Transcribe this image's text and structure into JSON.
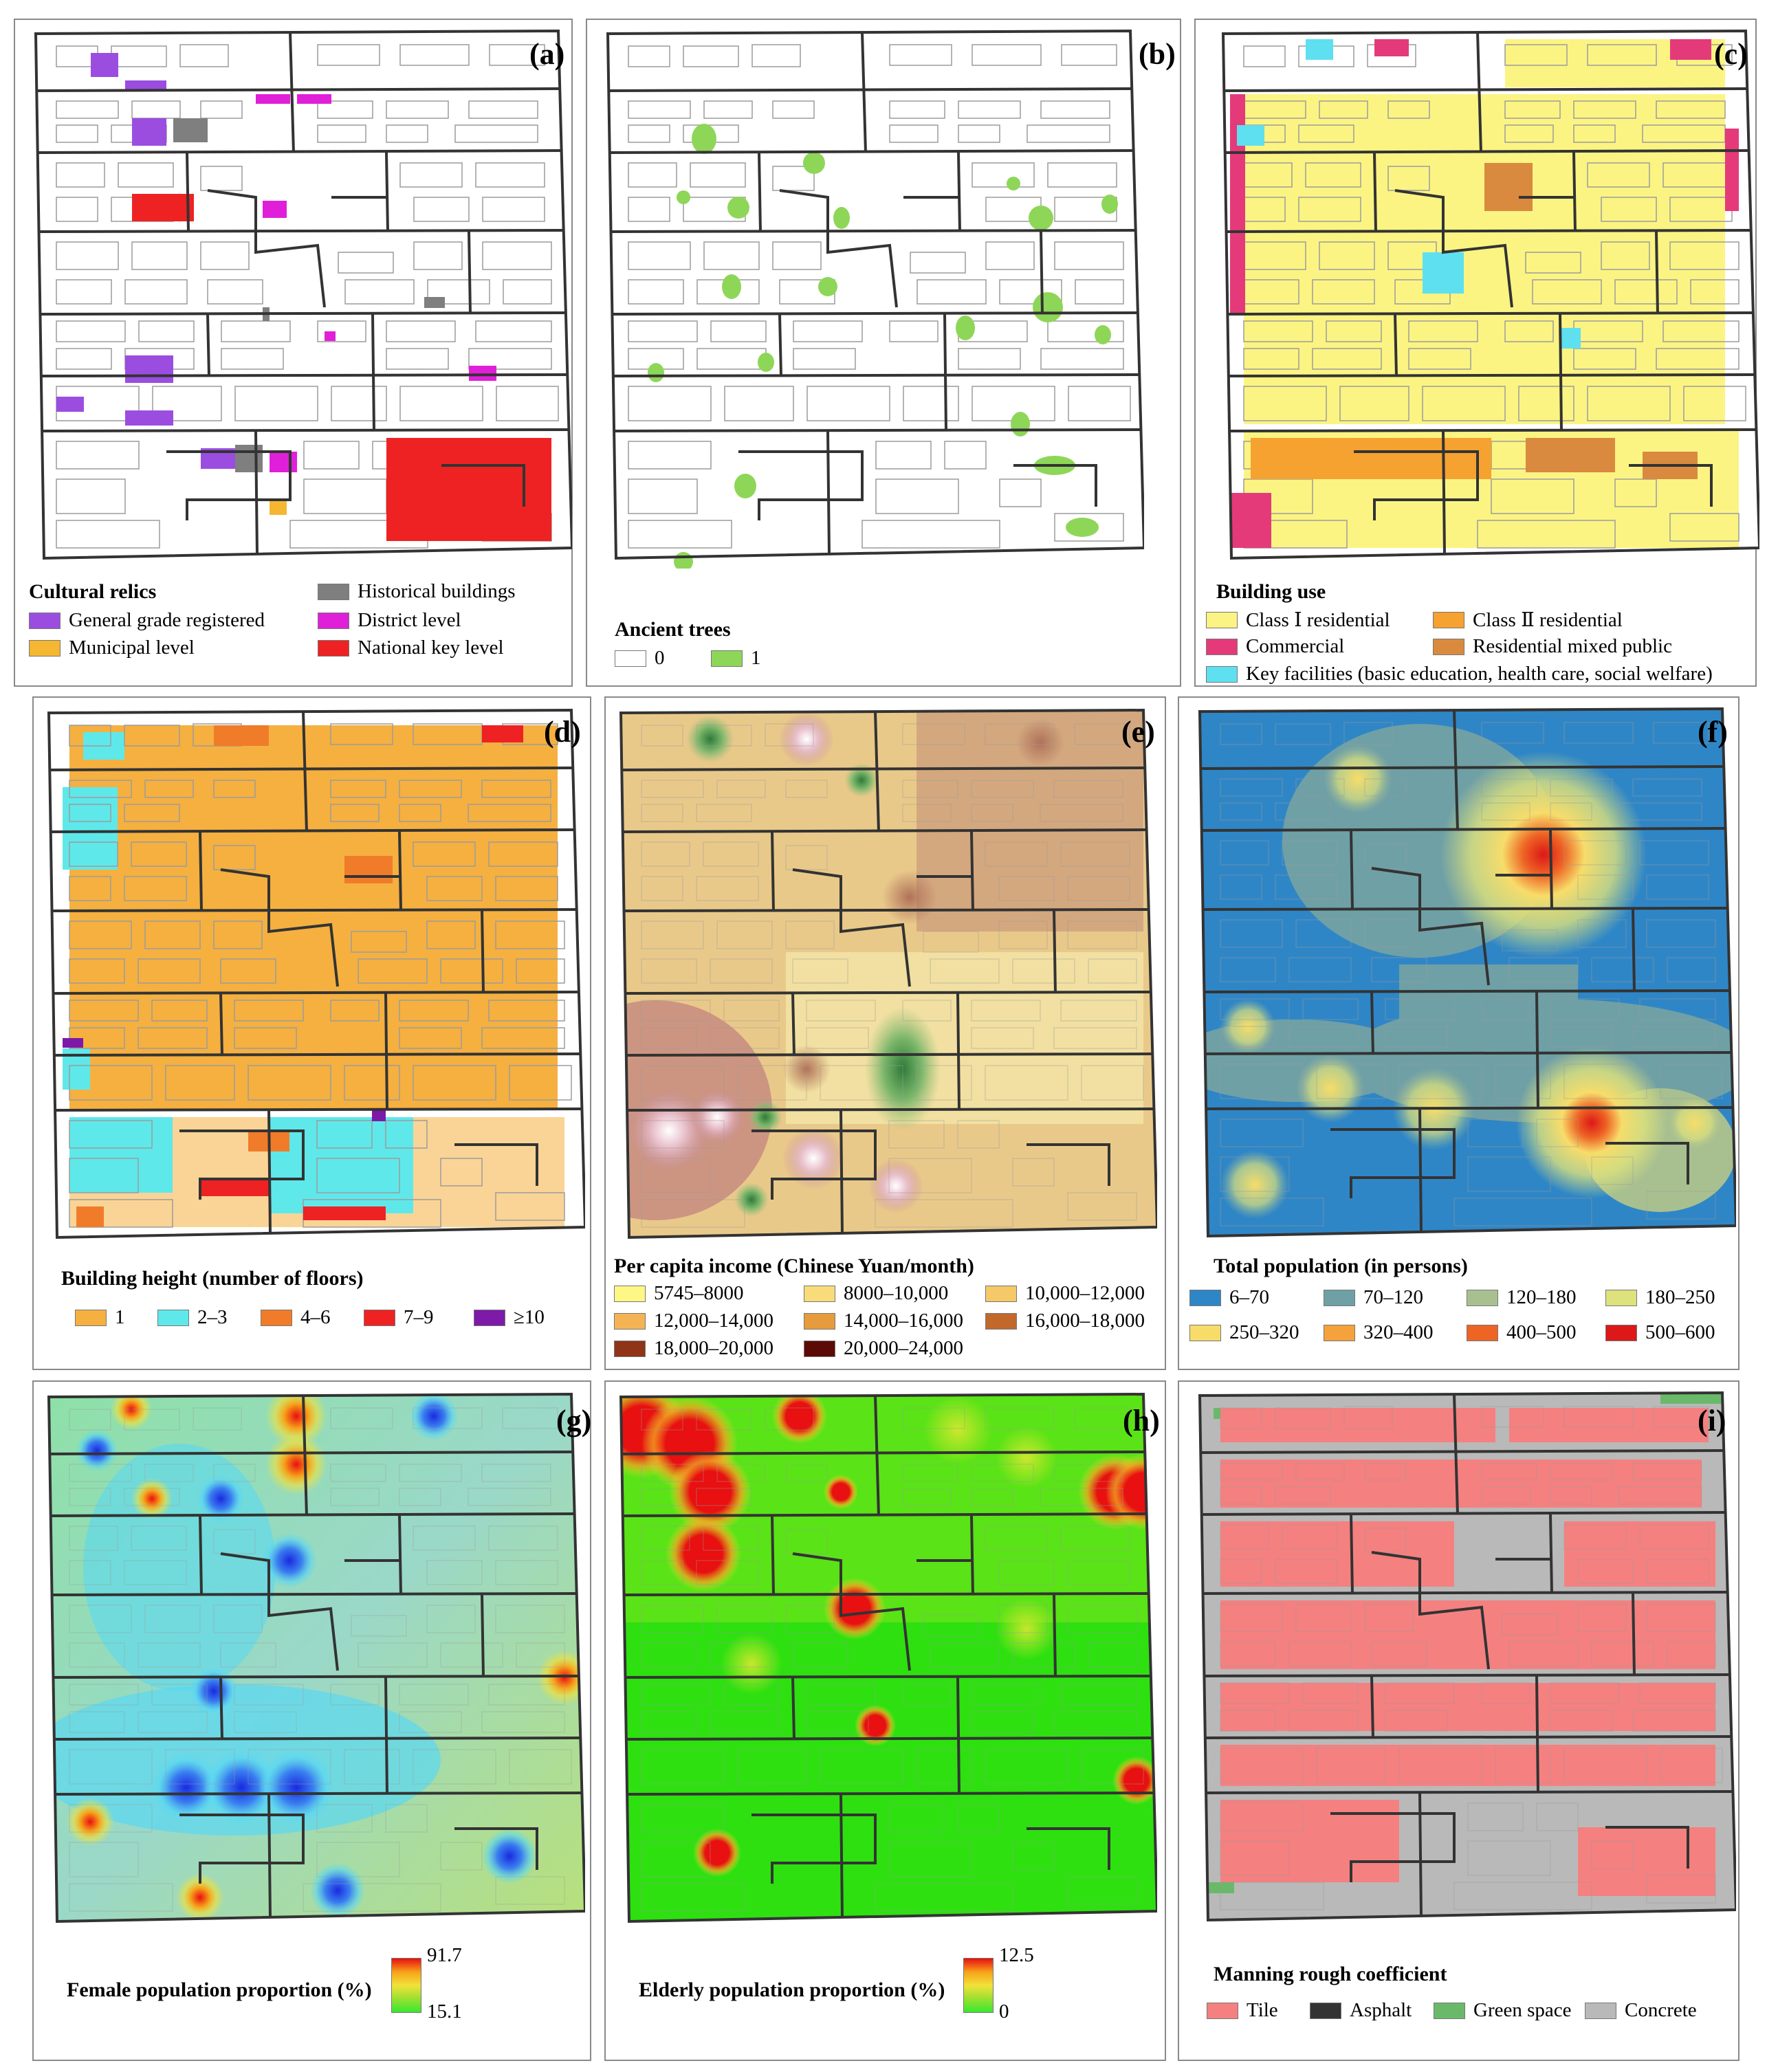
{
  "colors": {
    "road": "#333333",
    "building_outline": "#9c9c9c",
    "purple": "#9b4de0",
    "gray": "#7f7f7f",
    "magenta": "#e020d8",
    "red": "#ee2222",
    "orange": "#f5b731",
    "green": "#8ed658",
    "yellow": "#fbf483",
    "pink": "#e43a7a",
    "cyan": "#5ee0f0",
    "dorange": "#f5a231",
    "brown": "#d98a3e",
    "h1": "#f5b040",
    "h23": "#5fe8ea",
    "h46": "#f07c2a",
    "h79": "#ee2222",
    "h10": "#7d1aa8"
  },
  "panels": {
    "a": {
      "letter": "(a)",
      "legend_title": "Cultural relics",
      "items": [
        {
          "label": "General grade registered",
          "color": "#9b4de0"
        },
        {
          "label": "Municipal level",
          "color": "#f5b731"
        },
        {
          "label": "Historical buildings",
          "color": "#7f7f7f"
        },
        {
          "label": "District level",
          "color": "#e020d8"
        },
        {
          "label": "National key level",
          "color": "#ee2222"
        }
      ]
    },
    "b": {
      "letter": "(b)",
      "legend_title": "Ancient trees",
      "items": [
        {
          "label": "0",
          "color": "#ffffff"
        },
        {
          "label": "1",
          "color": "#8ed658"
        }
      ]
    },
    "c": {
      "letter": "(c)",
      "legend_title": "Building use",
      "items": [
        {
          "label": "Class Ⅰ residential",
          "color": "#fbf483"
        },
        {
          "label": "Class Ⅱ residential",
          "color": "#f5a231"
        },
        {
          "label": "Commercial",
          "color": "#e43a7a"
        },
        {
          "label": "Residential mixed public",
          "color": "#d98a3e"
        },
        {
          "label": "Key facilities (basic education, health care, social welfare)",
          "color": "#5ee0f0"
        }
      ]
    },
    "d": {
      "letter": "(d)",
      "legend_title": "Building height (number of floors)",
      "items": [
        {
          "label": "1",
          "color": "#f5b040"
        },
        {
          "label": "2–3",
          "color": "#5fe8ea"
        },
        {
          "label": "4–6",
          "color": "#f07c2a"
        },
        {
          "label": "7–9",
          "color": "#ee2222"
        },
        {
          "label": "≥10",
          "color": "#7d1aa8"
        }
      ]
    },
    "e": {
      "letter": "(e)",
      "legend_title": "Per capita income (Chinese Yuan/month)",
      "items": [
        {
          "label": "5745–8000",
          "color": "#fff785"
        },
        {
          "label": "8000–10,000",
          "color": "#f8dc7a"
        },
        {
          "label": "10,000–12,000",
          "color": "#f5c868"
        },
        {
          "label": "12,000–14,000",
          "color": "#f4b454"
        },
        {
          "label": "14,000–16,000",
          "color": "#e69c3c"
        },
        {
          "label": "16,000–18,000",
          "color": "#c2682a"
        },
        {
          "label": "18,000–20,000",
          "color": "#8f3416"
        },
        {
          "label": "20,000–24,000",
          "color": "#5c0a06"
        }
      ]
    },
    "f": {
      "letter": "(f)",
      "legend_title": "Total population (in persons)",
      "items": [
        {
          "label": "6–70",
          "color": "#2f86c6"
        },
        {
          "label": "70–120",
          "color": "#6fa0a6"
        },
        {
          "label": "120–180",
          "color": "#a8c090"
        },
        {
          "label": "180–250",
          "color": "#dde27c"
        },
        {
          "label": "250–320",
          "color": "#f7dc6a"
        },
        {
          "label": "320–400",
          "color": "#f5a23c"
        },
        {
          "label": "400–500",
          "color": "#ee6424"
        },
        {
          "label": "500–600",
          "color": "#dc1818"
        }
      ]
    },
    "g": {
      "letter": "(g)",
      "legend_title": "Female population proportion (%)",
      "max": "91.7",
      "min": "15.1"
    },
    "h": {
      "letter": "(h)",
      "legend_title": "Elderly population proportion (%)",
      "max": "12.5",
      "min": "0"
    },
    "i": {
      "letter": "(i)",
      "legend_title": "Manning rough  coefficient",
      "items": [
        {
          "label": "Tile",
          "color": "#f58080"
        },
        {
          "label": "Asphalt",
          "color": "#333333"
        },
        {
          "label": "Green space",
          "color": "#6ab96a"
        },
        {
          "label": "Concrete",
          "color": "#b9b9b9"
        }
      ]
    }
  }
}
